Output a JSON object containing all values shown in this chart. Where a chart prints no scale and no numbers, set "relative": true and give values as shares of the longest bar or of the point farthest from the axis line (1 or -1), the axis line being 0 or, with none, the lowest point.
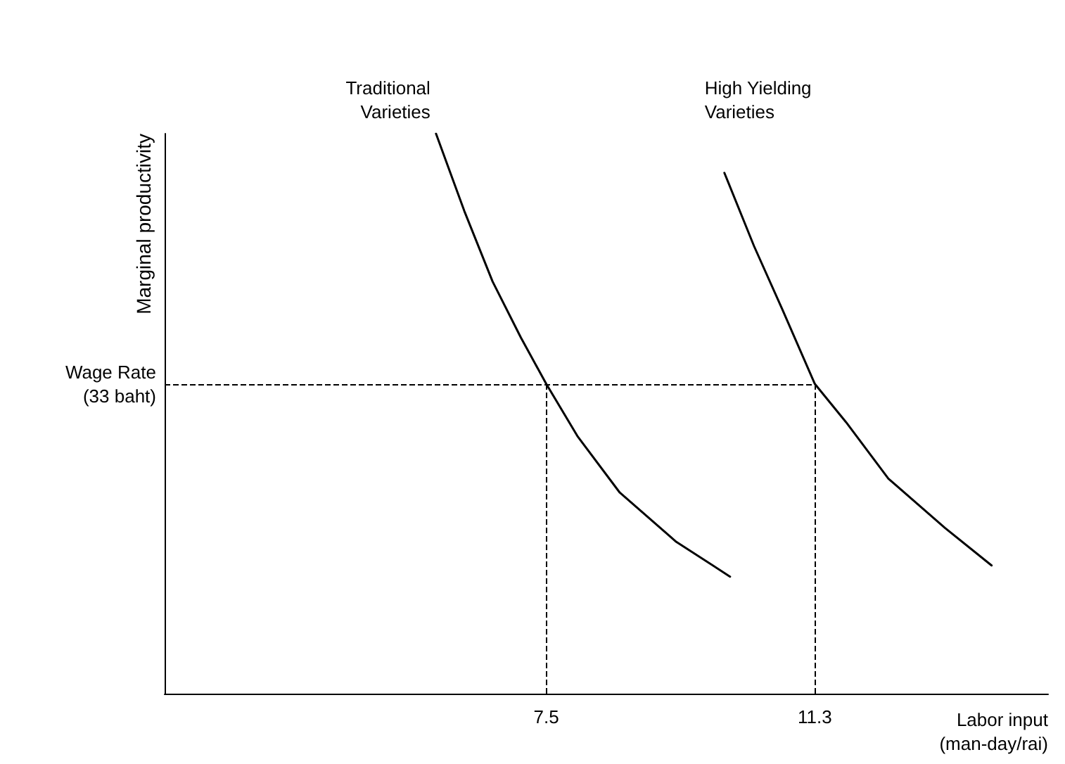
{
  "chart_data": {
    "type": "line",
    "relative": true,
    "xlabel": "Labor input (man-day/rai)",
    "ylabel": "Marginal productivity",
    "xlim": [
      2.1,
      14.6
    ],
    "xticks": [
      7.5,
      11.3
    ],
    "marker": "none",
    "line_style": "solid",
    "series": [
      {
        "name": "Traditional Varieties",
        "color": "#000000",
        "x": [
          5.94,
          6.34,
          6.74,
          7.14,
          7.5,
          7.94,
          8.54,
          9.34,
          10.1
        ],
        "values": [
          1.0,
          0.862,
          0.736,
          0.636,
          0.553,
          0.46,
          0.359,
          0.271,
          0.209
        ]
      },
      {
        "name": "High Yielding Varieties",
        "color": "#000000",
        "x": [
          10.02,
          10.44,
          10.84,
          11.3,
          11.74,
          12.34,
          13.14,
          13.8
        ],
        "values": [
          0.93,
          0.799,
          0.686,
          0.553,
          0.485,
          0.384,
          0.296,
          0.229
        ]
      }
    ],
    "ref_lines": [
      {
        "axis": "y",
        "value": 0.553,
        "label": "Wage Rate (33 baht)",
        "line_style": "dashed"
      },
      {
        "axis": "x",
        "value": 7.5,
        "line_style": "dashed"
      },
      {
        "axis": "x",
        "value": 11.3,
        "line_style": "dashed"
      }
    ]
  }
}
